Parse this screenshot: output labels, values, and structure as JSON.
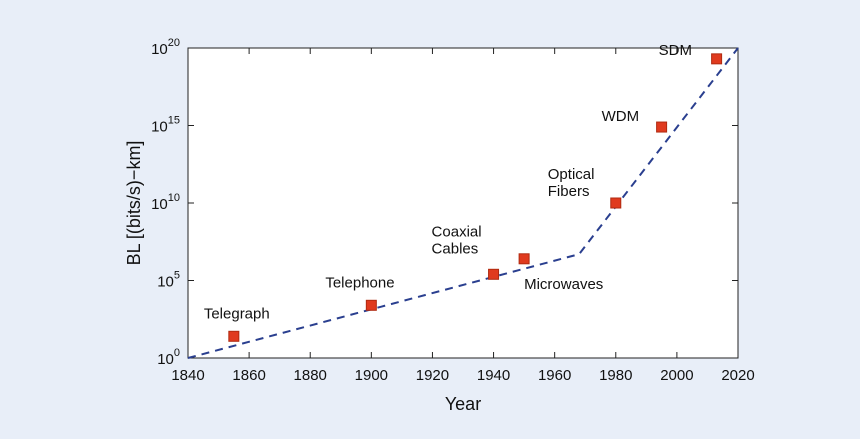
{
  "chart_data": {
    "type": "scatter",
    "xlabel": "Year",
    "ylabel": "BL [(bits/s)−km]",
    "xlim": [
      1840,
      2020
    ],
    "ylim_log10": [
      0,
      20
    ],
    "y_scale": "log",
    "grid": false,
    "x_ticks": [
      "1840",
      "1860",
      "1880",
      "1900",
      "1920",
      "1940",
      "1960",
      "1980",
      "2000",
      "2020"
    ],
    "y_ticks": [
      {
        "base": "10",
        "exp": "0"
      },
      {
        "base": "10",
        "exp": "5"
      },
      {
        "base": "10",
        "exp": "10"
      },
      {
        "base": "10",
        "exp": "15"
      },
      {
        "base": "10",
        "exp": "20"
      }
    ],
    "points": [
      {
        "label": "Telegraph",
        "x": 1855,
        "y": "1e1.4"
      },
      {
        "label": "Telephone",
        "x": 1900,
        "y": "1e3.4"
      },
      {
        "label": "Coaxial Cables",
        "x": 1940,
        "y": "1e5.4"
      },
      {
        "label": "Microwaves",
        "x": 1950,
        "y": "1e6.4"
      },
      {
        "label": "Optical Fibers",
        "x": 1980,
        "y": "1e10.0"
      },
      {
        "label": "WDM",
        "x": 1995,
        "y": "1e14.9"
      },
      {
        "label": "SDM",
        "x": 2013,
        "y": "1e19.3"
      }
    ],
    "trend_line": [
      {
        "x": 1840,
        "log10_y": 0
      },
      {
        "x": 1968,
        "log10_y": 6.7
      },
      {
        "x": 2020,
        "log10_y": 20
      }
    ],
    "colors": {
      "marker": "#e03a1e",
      "marker_edge": "#b02a10",
      "trend": "#2a3f8f",
      "panel": "#ffffff",
      "background": "#e8eef8"
    }
  }
}
